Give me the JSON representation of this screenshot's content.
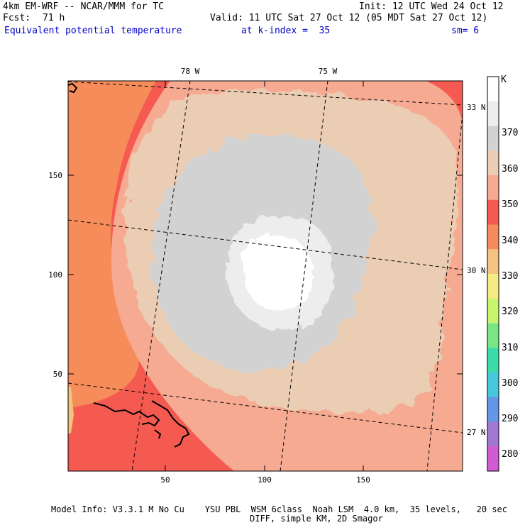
{
  "header": {
    "model_title": "4km EM-WRF -- NCAR/MMM for TC",
    "init": "Init: 12 UTC Wed 24 Oct 12",
    "fcst_label": "Fcst:",
    "fcst_value": "71 h",
    "valid": "Valid: 11 UTC Sat 27 Oct 12 (05 MDT Sat 27 Oct 12)",
    "field_name": "Equivalent potential temperature",
    "k_index": "at k-index =  35",
    "smoothing": "sm= 6"
  },
  "colorbar": {
    "unit": "K",
    "labels": [
      "370",
      "360",
      "350",
      "340",
      "330",
      "320",
      "310",
      "300",
      "290",
      "280"
    ],
    "colors": [
      "#ffffff",
      "#ededed",
      "#d2d2d2",
      "#ebcdb4",
      "#f5aa91",
      "#f55a50",
      "#f58c5a",
      "#f5c37d",
      "#f5eb82",
      "#c8f56e",
      "#78e682",
      "#3cdcaa",
      "#46c8dc",
      "#6496e6",
      "#a078d2",
      "#d25ad2"
    ]
  },
  "axes": {
    "x_ticks": [
      "50",
      "100",
      "150"
    ],
    "y_ticks": [
      "150",
      "100",
      "50"
    ],
    "lon_labels": [
      "78 W",
      "75 W"
    ],
    "lat_labels": [
      "33 N",
      "30 N",
      "27 N"
    ]
  },
  "footer": {
    "line1": "Model Info: V3.3.1 M No Cu    YSU PBL  WSM 6class  Noah LSM  4.0 km,  35 levels,   20 sec",
    "line2": "DIFF, simple KM, 2D Smagor"
  }
}
